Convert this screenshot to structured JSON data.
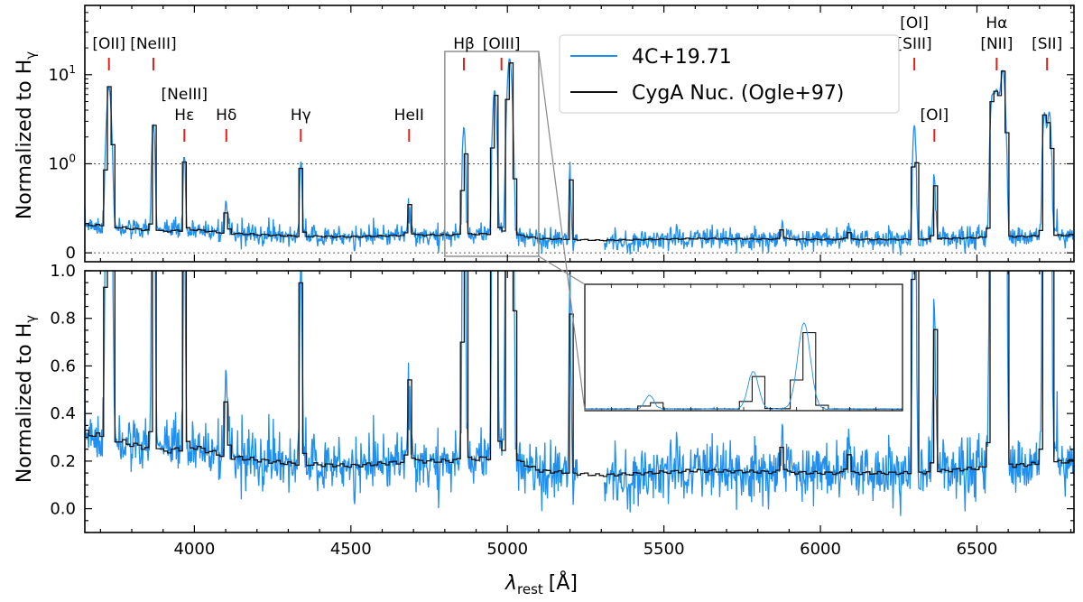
{
  "chart_data": {
    "type": "line",
    "x_unit": "Å",
    "xlim": [
      3650,
      6810
    ],
    "x_ticks": [
      4000,
      4500,
      5000,
      5500,
      6000,
      6500
    ],
    "x_tick_labels": [
      "4000",
      "4500",
      "5000",
      "5500",
      "6000",
      "6500"
    ],
    "xlabel_main": "λ",
    "xlabel_sub": "rest",
    "xlabel_unit": "[Å]",
    "colors": {
      "blue": "#1f8ff0",
      "black": "#111111",
      "red": "#e0201b",
      "gray": "#888888"
    },
    "panels": [
      {
        "ylabel_main": "Normalized to H",
        "ylabel_sub": "γ",
        "yscale": "symlog",
        "ylim": [
          -0.1,
          60
        ],
        "y_ticks": [
          0,
          1,
          10
        ],
        "y_tick_labels": [
          {
            "base": "0",
            "sup": ""
          },
          {
            "base": "10",
            "sup": "0"
          },
          {
            "base": "10",
            "sup": "1"
          }
        ],
        "hlines": [
          0,
          1
        ],
        "legend": {
          "position": "top-center",
          "entries": [
            {
              "label": "4C+19.71",
              "color": "#1f8ff0"
            },
            {
              "label": "CygA Nuc. (Ogle+97)",
              "color": "#111111"
            }
          ]
        }
      },
      {
        "ylabel_main": "Normalized to H",
        "ylabel_sub": "γ",
        "yscale": "linear",
        "ylim": [
          -0.1,
          1.0
        ],
        "y_ticks": [
          0,
          0.2,
          0.4,
          0.6,
          0.8,
          1.0
        ],
        "y_tick_labels": [
          "0.0",
          "0.2",
          "0.4",
          "0.6",
          "0.8",
          "1.0"
        ]
      }
    ],
    "line_labels": [
      {
        "x": 3727,
        "row": 1,
        "lines": [
          "[OII]"
        ]
      },
      {
        "x": 3869,
        "row": 1,
        "lines": [
          "[NeIII]"
        ]
      },
      {
        "x": 3968,
        "row": 2,
        "lines": [
          "[NeIII]",
          "Hε"
        ]
      },
      {
        "x": 4102,
        "row": 2,
        "lines": [
          "Hδ"
        ]
      },
      {
        "x": 4340,
        "row": 2,
        "lines": [
          "Hγ"
        ]
      },
      {
        "x": 4686,
        "row": 2,
        "lines": [
          "HeII"
        ]
      },
      {
        "x": 4861,
        "row": 1,
        "lines": [
          "Hβ"
        ]
      },
      {
        "x": 4981,
        "row": 1,
        "lines": [
          "[OIII]"
        ]
      },
      {
        "x": 6300,
        "row": 1,
        "lines": [
          "[OI]",
          "[SIII]"
        ]
      },
      {
        "x": 6364,
        "row": 2,
        "lines": [
          "[OI]"
        ]
      },
      {
        "x": 6563,
        "row": 1,
        "lines": [
          "Hα",
          "[NII]"
        ]
      },
      {
        "x": 6724,
        "row": 1,
        "lines": [
          "[SII]"
        ]
      }
    ],
    "inset": {
      "zoom_xlim": [
        4800,
        5100
      ],
      "zoom_ylim": [
        -0.1,
        22
      ]
    },
    "lines_emission": [
      {
        "center": 3727,
        "amp": 7.0,
        "width": 6
      },
      {
        "center": 3869,
        "amp": 2.6,
        "width": 4
      },
      {
        "center": 3968,
        "amp": 0.95,
        "width": 3.5
      },
      {
        "center": 4102,
        "amp": 0.35,
        "width": 4
      },
      {
        "center": 4340,
        "amp": 0.85,
        "width": 4
      },
      {
        "center": 4686,
        "amp": 0.35,
        "width": 5
      },
      {
        "center": 4861,
        "amp": 2.4,
        "width": 4
      },
      {
        "center": 4959,
        "amp": 6.5,
        "width": 5
      },
      {
        "center": 5007,
        "amp": 15.0,
        "width": 6
      },
      {
        "center": 5200,
        "amp": 0.8,
        "width": 3
      },
      {
        "center": 5876,
        "amp": 0.12,
        "width": 5
      },
      {
        "center": 6087,
        "amp": 0.1,
        "width": 5
      },
      {
        "center": 6300,
        "amp": 2.6,
        "width": 4
      },
      {
        "center": 6364,
        "amp": 0.7,
        "width": 4
      },
      {
        "center": 6548,
        "amp": 4.0,
        "width": 5
      },
      {
        "center": 6563,
        "amp": 6.5,
        "width": 9
      },
      {
        "center": 6583,
        "amp": 10.5,
        "width": 6
      },
      {
        "center": 6716,
        "amp": 3.5,
        "width": 5
      },
      {
        "center": 6731,
        "amp": 3.6,
        "width": 5
      }
    ],
    "continuum": [
      [
        3650,
        0.32
      ],
      [
        3800,
        0.27
      ],
      [
        3900,
        0.24
      ],
      [
        4000,
        0.26
      ],
      [
        4100,
        0.22
      ],
      [
        4300,
        0.19
      ],
      [
        4500,
        0.18
      ],
      [
        4700,
        0.2
      ],
      [
        4800,
        0.2
      ],
      [
        5000,
        0.22
      ],
      [
        5100,
        0.16
      ],
      [
        5300,
        0.14
      ],
      [
        5600,
        0.16
      ],
      [
        6000,
        0.15
      ],
      [
        6300,
        0.15
      ],
      [
        6500,
        0.17
      ],
      [
        6810,
        0.2
      ]
    ],
    "series": [
      {
        "name": "4C+19.71",
        "color": "#1f8ff0",
        "gap": [
          5225,
          5310
        ],
        "noise": 0.06
      },
      {
        "name": "CygA Nuc. (Ogle+97)",
        "color": "#111111",
        "gap": [],
        "noise": 0
      }
    ]
  }
}
